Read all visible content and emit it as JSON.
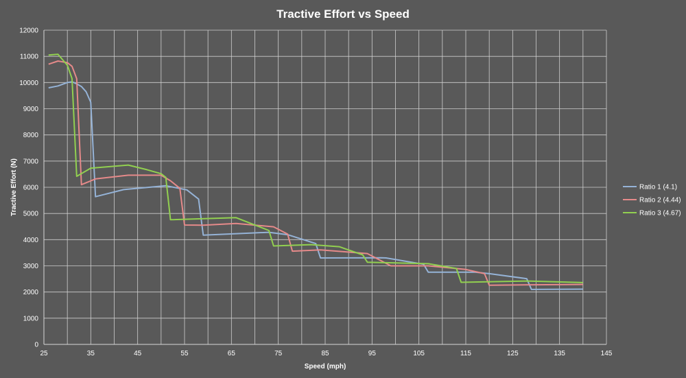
{
  "chart_data": {
    "type": "line",
    "title": "Tractive Effort vs Speed",
    "xlabel": "Speed (mph)",
    "ylabel": "Tractive Effort (N)",
    "xlim": [
      25,
      145
    ],
    "ylim": [
      0,
      12000
    ],
    "x_ticks": [
      25,
      35,
      45,
      55,
      65,
      75,
      85,
      95,
      105,
      115,
      125,
      135,
      145
    ],
    "x_tick_labels": [
      "25",
      "35",
      "45",
      "55",
      "65",
      "75",
      "85",
      "95",
      "105",
      "115",
      "125",
      "135",
      "145"
    ],
    "x_minor_step": 5,
    "y_ticks": [
      0,
      1000,
      2000,
      3000,
      4000,
      5000,
      6000,
      7000,
      8000,
      9000,
      10000,
      11000,
      12000
    ],
    "y_tick_labels": [
      "0",
      "1000",
      "2000",
      "3000",
      "4000",
      "5000",
      "6000",
      "7000",
      "8000",
      "9000",
      "10000",
      "11000",
      "12000"
    ],
    "grid": true,
    "legend_position": "right",
    "series": [
      {
        "name": "Ratio 1 (4.1)",
        "color": "#95b3d7",
        "points": [
          [
            26,
            9800
          ],
          [
            28,
            9870
          ],
          [
            30,
            10000
          ],
          [
            31,
            10030
          ],
          [
            32,
            9950
          ],
          [
            33,
            9850
          ],
          [
            34,
            9650
          ],
          [
            35,
            9250
          ],
          [
            36,
            5640
          ],
          [
            42,
            5910
          ],
          [
            51,
            6060
          ],
          [
            55.5,
            5900
          ],
          [
            58,
            5550
          ],
          [
            59,
            4170
          ],
          [
            73,
            4280
          ],
          [
            77,
            4190
          ],
          [
            83,
            3850
          ],
          [
            84,
            3300
          ],
          [
            97,
            3310
          ],
          [
            98,
            3300
          ],
          [
            106,
            3060
          ],
          [
            107,
            2760
          ],
          [
            117,
            2760
          ],
          [
            120,
            2700
          ],
          [
            128,
            2510
          ],
          [
            129,
            2100
          ],
          [
            140,
            2110
          ]
        ]
      },
      {
        "name": "Ratio 2 (4.44)",
        "color": "#e68a8a",
        "points": [
          [
            26,
            10700
          ],
          [
            28,
            10820
          ],
          [
            30,
            10760
          ],
          [
            31,
            10620
          ],
          [
            32,
            10150
          ],
          [
            33,
            6100
          ],
          [
            36,
            6320
          ],
          [
            43,
            6460
          ],
          [
            50,
            6460
          ],
          [
            52,
            6250
          ],
          [
            54,
            5960
          ],
          [
            55,
            4560
          ],
          [
            59,
            4550
          ],
          [
            66,
            4620
          ],
          [
            74,
            4490
          ],
          [
            77,
            4210
          ],
          [
            78,
            3560
          ],
          [
            84,
            3610
          ],
          [
            94,
            3470
          ],
          [
            99,
            3000
          ],
          [
            107,
            3000
          ],
          [
            115,
            2860
          ],
          [
            119,
            2700
          ],
          [
            120,
            2260
          ],
          [
            140,
            2290
          ]
        ]
      },
      {
        "name": "Ratio 3 (4.67)",
        "color": "#92d050",
        "points": [
          [
            26,
            11050
          ],
          [
            28,
            11080
          ],
          [
            30,
            10660
          ],
          [
            31,
            10150
          ],
          [
            32,
            6420
          ],
          [
            35,
            6730
          ],
          [
            43,
            6850
          ],
          [
            47,
            6670
          ],
          [
            50,
            6520
          ],
          [
            51,
            6380
          ],
          [
            52,
            4760
          ],
          [
            66,
            4840
          ],
          [
            73,
            4350
          ],
          [
            74,
            3760
          ],
          [
            82,
            3810
          ],
          [
            88,
            3730
          ],
          [
            93,
            3420
          ],
          [
            94,
            3140
          ],
          [
            107,
            3080
          ],
          [
            113,
            2900
          ],
          [
            114,
            2370
          ],
          [
            128,
            2420
          ],
          [
            140,
            2360
          ]
        ]
      }
    ]
  }
}
